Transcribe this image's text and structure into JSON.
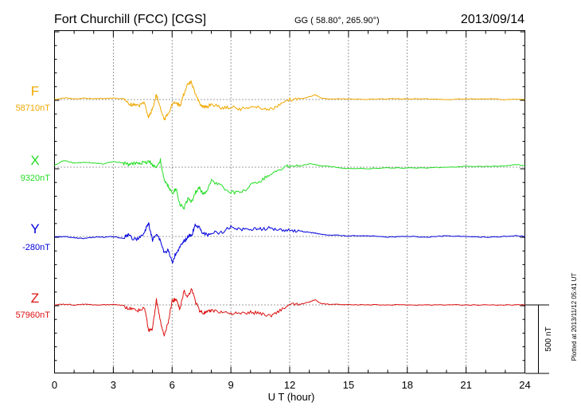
{
  "chart_data": {
    "type": "line",
    "title": "Fort Churchill (FCC)  [CGS]",
    "coords": "GG ( 58.80°, 265.90°)",
    "date": "2013/09/14",
    "xlabel": "U T (hour)",
    "xlim": [
      0,
      24
    ],
    "x_ticks": [
      "0",
      "3",
      "6",
      "9",
      "12",
      "15",
      "18",
      "21",
      "24"
    ],
    "grid": "dotted vertical every 3 hours",
    "scale_bar": {
      "label": "500 nT",
      "value_nT": 500
    },
    "plotted_note": "Plotted at 2013/11/12 05:41  UT",
    "x_hours": [
      0,
      0.5,
      1,
      1.5,
      2,
      2.5,
      3,
      3.5,
      3.8,
      4,
      4.3,
      4.6,
      4.8,
      5,
      5.2,
      5.4,
      5.6,
      5.8,
      6,
      6.2,
      6.4,
      6.6,
      6.8,
      7,
      7.2,
      7.4,
      7.6,
      7.8,
      8,
      8.5,
      9,
      9.5,
      10,
      10.5,
      11,
      11.5,
      12,
      12.5,
      13,
      13.3,
      13.6,
      14,
      15,
      16,
      17,
      18,
      19,
      20,
      21,
      22,
      23,
      23.5,
      24
    ],
    "series": [
      {
        "name": "F",
        "baseline_label": "58710nT",
        "color": "#f0a800",
        "values_nT_offset": [
          0,
          12,
          5,
          10,
          6,
          8,
          10,
          5,
          -30,
          -40,
          -45,
          -20,
          -130,
          -70,
          35,
          -60,
          -150,
          -100,
          -40,
          -20,
          -50,
          40,
          110,
          125,
          30,
          -25,
          -50,
          -60,
          -30,
          -60,
          -55,
          -70,
          -50,
          -60,
          -75,
          -40,
          0,
          5,
          20,
          35,
          10,
          5,
          5,
          0,
          5,
          5,
          5,
          0,
          5,
          5,
          0,
          3,
          0
        ]
      },
      {
        "name": "X",
        "baseline_label": "9320nT",
        "color": "#22dd22",
        "values_nT_offset": [
          15,
          50,
          30,
          35,
          30,
          25,
          40,
          30,
          20,
          25,
          35,
          30,
          45,
          20,
          0,
          50,
          -100,
          -140,
          -190,
          -160,
          -270,
          -300,
          -230,
          -250,
          -180,
          -150,
          -200,
          -160,
          -100,
          -140,
          -180,
          -190,
          -130,
          -100,
          -50,
          -20,
          15,
          10,
          25,
          20,
          10,
          5,
          -10,
          -10,
          -5,
          -5,
          -5,
          0,
          5,
          5,
          10,
          20,
          10
        ]
      },
      {
        "name": "Y",
        "baseline_label": "-280nT",
        "color": "#0000dd",
        "values_nT_offset": [
          -5,
          0,
          -10,
          -15,
          -5,
          -5,
          0,
          -15,
          20,
          -20,
          -15,
          30,
          100,
          -30,
          25,
          -30,
          -120,
          -100,
          -190,
          -120,
          -80,
          -40,
          0,
          10,
          90,
          60,
          20,
          10,
          25,
          30,
          70,
          50,
          55,
          55,
          60,
          50,
          45,
          40,
          30,
          25,
          15,
          10,
          5,
          5,
          -5,
          0,
          -5,
          5,
          0,
          -5,
          0,
          5,
          0
        ]
      },
      {
        "name": "Z",
        "baseline_label": "57960nT",
        "color": "#dd1111",
        "values_nT_offset": [
          0,
          5,
          0,
          5,
          0,
          0,
          3,
          -5,
          -30,
          -30,
          -40,
          -20,
          -190,
          -170,
          35,
          -120,
          -230,
          -130,
          30,
          40,
          -35,
          100,
          60,
          120,
          20,
          -40,
          -60,
          -55,
          -40,
          -50,
          -60,
          -65,
          -55,
          -60,
          -80,
          -40,
          0,
          5,
          20,
          40,
          10,
          5,
          3,
          0,
          0,
          0,
          0,
          0,
          0,
          0,
          0,
          0,
          0
        ]
      }
    ]
  }
}
